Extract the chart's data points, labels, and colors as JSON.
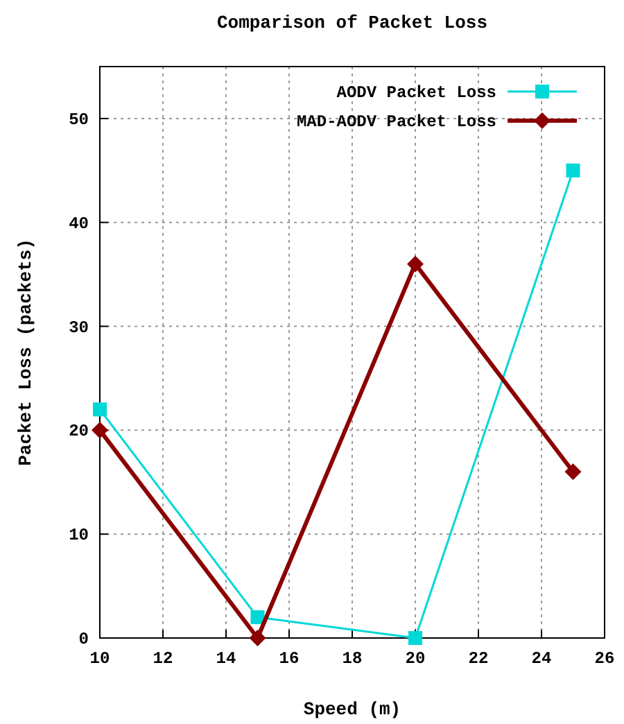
{
  "chart_data": {
    "type": "line",
    "title": "Comparison of Packet Loss",
    "xlabel": "Speed (m)",
    "ylabel": "Packet Loss (packets)",
    "x": [
      10,
      15,
      20,
      25
    ],
    "series": [
      {
        "name": "AODV Packet Loss",
        "color": "#00d8d8",
        "values": [
          22,
          2,
          0,
          45
        ],
        "marker": "square"
      },
      {
        "name": "MAD-AODV Packet Loss",
        "color": "#8b0000",
        "values": [
          20,
          0,
          36,
          16
        ],
        "marker": "diamond"
      }
    ],
    "xlim": [
      10,
      26
    ],
    "xticks": [
      10,
      12,
      14,
      16,
      18,
      20,
      22,
      24,
      26
    ],
    "ylim": [
      0,
      55
    ],
    "yticks": [
      0,
      10,
      20,
      30,
      40,
      50
    ],
    "grid": true,
    "legend": "top right"
  }
}
